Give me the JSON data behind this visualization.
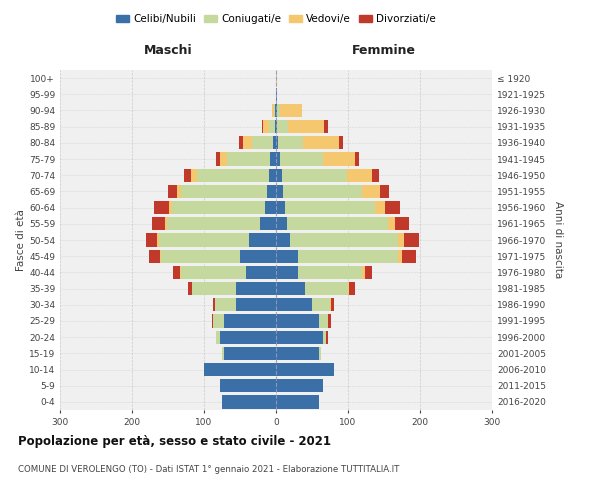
{
  "age_groups": [
    "0-4",
    "5-9",
    "10-14",
    "15-19",
    "20-24",
    "25-29",
    "30-34",
    "35-39",
    "40-44",
    "45-49",
    "50-54",
    "55-59",
    "60-64",
    "65-69",
    "70-74",
    "75-79",
    "80-84",
    "85-89",
    "90-94",
    "95-99",
    "100+"
  ],
  "birth_years": [
    "2016-2020",
    "2011-2015",
    "2006-2010",
    "2001-2005",
    "1996-2000",
    "1991-1995",
    "1986-1990",
    "1981-1985",
    "1976-1980",
    "1971-1975",
    "1966-1970",
    "1961-1965",
    "1956-1960",
    "1951-1955",
    "1946-1950",
    "1941-1945",
    "1936-1940",
    "1931-1935",
    "1926-1930",
    "1921-1925",
    "≤ 1920"
  ],
  "males": {
    "celibe": [
      75,
      78,
      100,
      72,
      78,
      72,
      55,
      55,
      42,
      50,
      38,
      22,
      15,
      12,
      10,
      8,
      4,
      2,
      1,
      0,
      0
    ],
    "coniugato": [
      0,
      0,
      0,
      3,
      5,
      15,
      30,
      62,
      90,
      110,
      125,
      130,
      130,
      120,
      100,
      60,
      30,
      8,
      2,
      0,
      0
    ],
    "vedovo": [
      0,
      0,
      0,
      0,
      0,
      0,
      0,
      0,
      1,
      1,
      2,
      2,
      4,
      6,
      8,
      10,
      12,
      8,
      3,
      0,
      0
    ],
    "divorziato": [
      0,
      0,
      0,
      0,
      1,
      2,
      2,
      5,
      10,
      15,
      15,
      18,
      20,
      12,
      10,
      5,
      5,
      1,
      0,
      0,
      0
    ]
  },
  "females": {
    "nubile": [
      60,
      65,
      80,
      60,
      65,
      60,
      50,
      40,
      30,
      30,
      20,
      15,
      12,
      10,
      8,
      5,
      3,
      2,
      1,
      1,
      0
    ],
    "coniugata": [
      0,
      0,
      0,
      2,
      5,
      12,
      25,
      60,
      90,
      140,
      150,
      140,
      125,
      110,
      90,
      60,
      35,
      15,
      5,
      0,
      0
    ],
    "vedova": [
      0,
      0,
      0,
      0,
      0,
      0,
      1,
      2,
      3,
      5,
      8,
      10,
      15,
      25,
      35,
      45,
      50,
      50,
      30,
      1,
      1
    ],
    "divorziata": [
      0,
      0,
      0,
      0,
      2,
      4,
      5,
      8,
      10,
      20,
      20,
      20,
      20,
      12,
      10,
      5,
      5,
      5,
      0,
      0,
      0
    ]
  },
  "colors": {
    "celibe": "#3a6fa8",
    "coniugato": "#c5d99f",
    "vedovo": "#f5c870",
    "divorziato": "#c0392b"
  },
  "xlim": 300,
  "title": "Popolazione per età, sesso e stato civile - 2021",
  "subtitle": "COMUNE DI VEROLENGO (TO) - Dati ISTAT 1° gennaio 2021 - Elaborazione TUTTITALIA.IT",
  "ylabel_left": "Fasce di età",
  "ylabel_right": "Anni di nascita",
  "xlabel_left": "Maschi",
  "xlabel_right": "Femmine",
  "legend_labels": [
    "Celibi/Nubili",
    "Coniugati/e",
    "Vedovi/e",
    "Divorziati/e"
  ],
  "bg_color": "#f0f0f0",
  "grid_color": "#cccccc"
}
